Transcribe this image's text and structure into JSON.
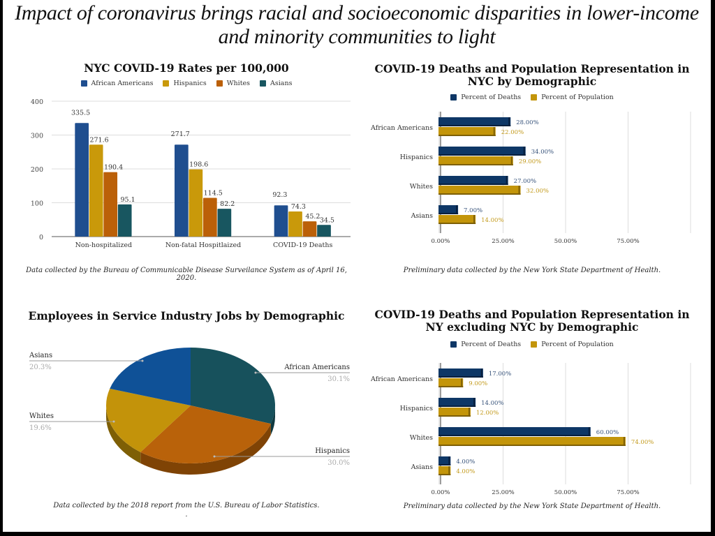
{
  "headline": {
    "line1": "Impact of coronavirus brings racial and socioeconomic disparities in lower-income",
    "line2": "and minority communities to light"
  },
  "colors": {
    "african_americans": "#1f4e8f",
    "hispanics": "#c9990a",
    "whites": "#bb6008",
    "asians": "#185660",
    "deaths": "#0e3766",
    "population": "#c3950a",
    "pie_african_americans": "#17515c",
    "pie_hispanics": "#b9620a",
    "pie_whites": "#c3930a",
    "pie_asians": "#0f5197"
  },
  "chart_data": [
    {
      "id": "rates",
      "type": "bar",
      "title": "NYC COVID-19 Rates per 100,000",
      "categories": [
        "Non-hospitalized",
        "Non-fatal Hospitlaized",
        "COVID-19 Deaths"
      ],
      "series": [
        {
          "name": "African Americans",
          "values": [
            335.5,
            271.7,
            92.3
          ],
          "labels": [
            "335.5",
            "271.7",
            "92.3"
          ]
        },
        {
          "name": "Hispanics",
          "values": [
            271.6,
            198.6,
            74.3
          ],
          "labels": [
            "271.6",
            "198.6",
            "74.3"
          ]
        },
        {
          "name": "Whites",
          "values": [
            190.4,
            114.5,
            45.2
          ],
          "labels": [
            "190.4",
            "114.5",
            "45.2"
          ]
        },
        {
          "name": "Asians",
          "values": [
            95.1,
            82.2,
            34.5
          ],
          "labels": [
            "95.1",
            "82.2",
            "34.5"
          ]
        }
      ],
      "ylim": [
        0,
        400
      ],
      "yticks": [
        "0",
        "100",
        "200",
        "300",
        "400"
      ],
      "xlabel": "",
      "ylabel": "",
      "grid": true,
      "legend": "top",
      "caption": "Data collected by the Bureau of Communicable Disease Surveilance System as of April 16, 2020."
    },
    {
      "id": "nyc",
      "type": "bar",
      "orientation": "horizontal",
      "title_line1": "COVID-19 Deaths and Population Representation in",
      "title_line2": "NYC by Demographic",
      "categories": [
        "African Americans",
        "Hispanics",
        "Whites",
        "Asians"
      ],
      "series": [
        {
          "name": "Percent of Deaths",
          "values": [
            28,
            34,
            27,
            7
          ],
          "labels": [
            "28.00%",
            "34.00%",
            "27.00%",
            "7.00%"
          ]
        },
        {
          "name": "Percent of Population",
          "values": [
            22,
            29,
            32,
            14
          ],
          "labels": [
            "22.00%",
            "29.00%",
            "32.00%",
            "14.00%"
          ]
        }
      ],
      "xlim": [
        0,
        100
      ],
      "xticks": [
        "0.00%",
        "25.00%",
        "50.00%",
        "75.00%"
      ],
      "grid": true,
      "legend": "top",
      "caption": "Preliminary data collected by the New York State Department of Health."
    },
    {
      "id": "service",
      "type": "pie",
      "title": "Employees in Service Industry Jobs by Demographic",
      "slices": [
        {
          "name": "African Americans",
          "value": 30.1,
          "label": "30.1%"
        },
        {
          "name": "Hispanics",
          "value": 30.0,
          "label": "30.0%"
        },
        {
          "name": "Whites",
          "value": 19.6,
          "label": "19.6%"
        },
        {
          "name": "Asians",
          "value": 20.3,
          "label": "20.3%"
        }
      ],
      "caption": "Data collected by the 2018 report from the U.S. Bureau of Labor Statistics.",
      "caption_dot": "."
    },
    {
      "id": "ny",
      "type": "bar",
      "orientation": "horizontal",
      "title_line1": "COVID-19 Deaths and Population Representation in",
      "title_line2": "NY excluding NYC by Demographic",
      "categories": [
        "African Americans",
        "Hispanics",
        "Whites",
        "Asians"
      ],
      "series": [
        {
          "name": "Percent of Deaths",
          "values": [
            17,
            14,
            60,
            4
          ],
          "labels": [
            "17.00%",
            "14.00%",
            "60.00%",
            "4.00%"
          ]
        },
        {
          "name": "Percent of Population",
          "values": [
            9,
            12,
            74,
            4
          ],
          "labels": [
            "9.00%",
            "12.00%",
            "74.00%",
            "4.00%"
          ]
        }
      ],
      "xlim": [
        0,
        100
      ],
      "xticks": [
        "0.00%",
        "25.00%",
        "50.00%",
        "75.00%"
      ],
      "grid": true,
      "legend": "top",
      "caption": "Preliminary data collected by the New York State Department of Health."
    }
  ]
}
